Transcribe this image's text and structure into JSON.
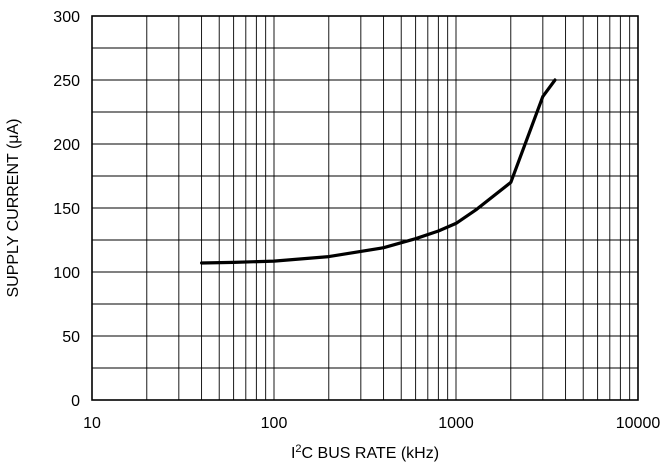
{
  "chart_data": {
    "type": "line",
    "title": "",
    "xlabel": {
      "prefix": "I",
      "superscript": "2",
      "suffix": "C BUS RATE (kHz)"
    },
    "ylabel": {
      "prefix": "SUPPLY CURRENT (",
      "greek": "μ",
      "suffix": "A)"
    },
    "x_scale": "log",
    "xlim": [
      10,
      10000
    ],
    "ylim": [
      0,
      300
    ],
    "x_ticks": [
      {
        "value": 10,
        "label": "10"
      },
      {
        "value": 100,
        "label": "100"
      },
      {
        "value": 1000,
        "label": "1000"
      },
      {
        "value": 10000,
        "label": "10000"
      }
    ],
    "y_ticks": [
      {
        "value": 0,
        "label": "0"
      },
      {
        "value": 50,
        "label": "50"
      },
      {
        "value": 100,
        "label": "100"
      },
      {
        "value": 150,
        "label": "150"
      },
      {
        "value": 200,
        "label": "200"
      },
      {
        "value": 250,
        "label": "250"
      },
      {
        "value": 300,
        "label": "300"
      }
    ],
    "y_gridlines": [
      0,
      25,
      50,
      75,
      100,
      125,
      150,
      175,
      200,
      225,
      250,
      275,
      300
    ],
    "grid": true,
    "legend": "none",
    "line_color": "#000000",
    "series": [
      {
        "x": [
          40,
          60,
          100,
          200,
          400,
          600,
          800,
          1000,
          1300,
          2000,
          3000,
          3500
        ],
        "y": [
          107,
          107.5,
          108.5,
          112,
          119,
          126,
          132,
          138,
          149,
          170,
          237,
          250
        ]
      }
    ]
  }
}
